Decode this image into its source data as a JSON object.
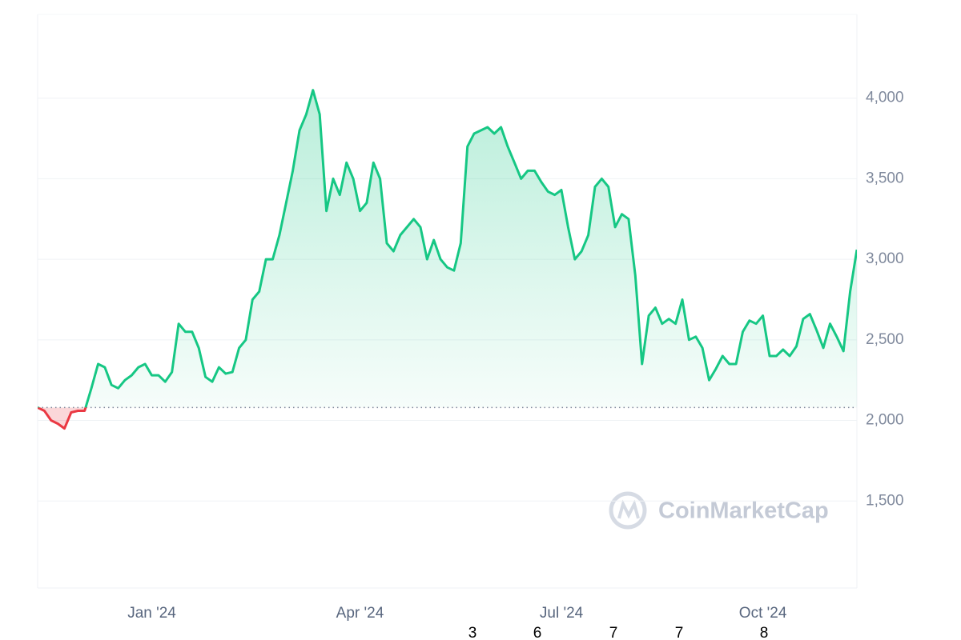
{
  "chart_data": {
    "type": "line",
    "categories": [
      null,
      null,
      null,
      null,
      null,
      null,
      null,
      null,
      null,
      null,
      null,
      null,
      null,
      null,
      null,
      null,
      null,
      null,
      null,
      null,
      null,
      null,
      null,
      null,
      null,
      null,
      null,
      null,
      null,
      null,
      null,
      null,
      null,
      null,
      null,
      null,
      null,
      null,
      null,
      null,
      null,
      null,
      null,
      null,
      null,
      null,
      null,
      null,
      null,
      null,
      null,
      null,
      null,
      null,
      null,
      null,
      null,
      null,
      null,
      null,
      null,
      null,
      null,
      null,
      null,
      null,
      null,
      null,
      null,
      null,
      null,
      null,
      null,
      null,
      null,
      null,
      null,
      null,
      null,
      null,
      null,
      null,
      null,
      null,
      null,
      null,
      null,
      null,
      null,
      null,
      null,
      null,
      null,
      null,
      null,
      null,
      null,
      null,
      null,
      null,
      null,
      null,
      null,
      null,
      null,
      null,
      null,
      null,
      null,
      null,
      null,
      null,
      null,
      null,
      null,
      null,
      null,
      null,
      null,
      null,
      null,
      null,
      null
    ],
    "values": [
      2080,
      2060,
      2000,
      1980,
      1950,
      2050,
      2060,
      2060,
      2200,
      2350,
      2330,
      2220,
      2200,
      2250,
      2280,
      2330,
      2350,
      2280,
      2280,
      2240,
      2300,
      2600,
      2550,
      2550,
      2450,
      2270,
      2240,
      2330,
      2290,
      2300,
      2450,
      2500,
      2750,
      2800,
      3000,
      3000,
      3150,
      3350,
      3550,
      3800,
      3900,
      4050,
      3900,
      3300,
      3500,
      3400,
      3600,
      3500,
      3300,
      3350,
      3600,
      3500,
      3100,
      3050,
      3150,
      3200,
      3250,
      3200,
      3000,
      3120,
      3000,
      2950,
      2930,
      3100,
      3700,
      3780,
      3800,
      3820,
      3780,
      3820,
      3700,
      3600,
      3500,
      3550,
      3550,
      3480,
      3420,
      3400,
      3430,
      3200,
      3000,
      3050,
      3150,
      3450,
      3500,
      3450,
      3200,
      3280,
      3250,
      2900,
      2350,
      2650,
      2700,
      2600,
      2630,
      2600,
      2750,
      2500,
      2520,
      2450,
      2250,
      2320,
      2400,
      2350,
      2350,
      2550,
      2620,
      2600,
      2650,
      2400,
      2400,
      2440,
      2400,
      2460,
      2630,
      2660,
      2560,
      2450,
      2600,
      2520,
      2430,
      2800,
      3060
    ],
    "color": "#16c784",
    "negative_color": "#ea3943",
    "ylim": [
      960,
      4520
    ],
    "yticks": [
      {
        "value": 1500,
        "label": "1,500"
      },
      {
        "value": 2000,
        "label": "2,000"
      },
      {
        "value": 2500,
        "label": "2,500"
      },
      {
        "value": 3000,
        "label": "3,000"
      },
      {
        "value": 3500,
        "label": "3,500"
      },
      {
        "value": 4000,
        "label": "4,000"
      }
    ],
    "xticks": [
      {
        "value": 17,
        "label": "Jan '24"
      },
      {
        "value": 48,
        "label": "Apr '24"
      },
      {
        "value": 78,
        "label": "Jul '24"
      },
      {
        "value": 108,
        "label": "Oct '24"
      }
    ],
    "grid": true,
    "watermark": "CoinMarketCap",
    "footer_labels": [
      "3",
      "6",
      "7",
      "7",
      "8"
    ]
  }
}
